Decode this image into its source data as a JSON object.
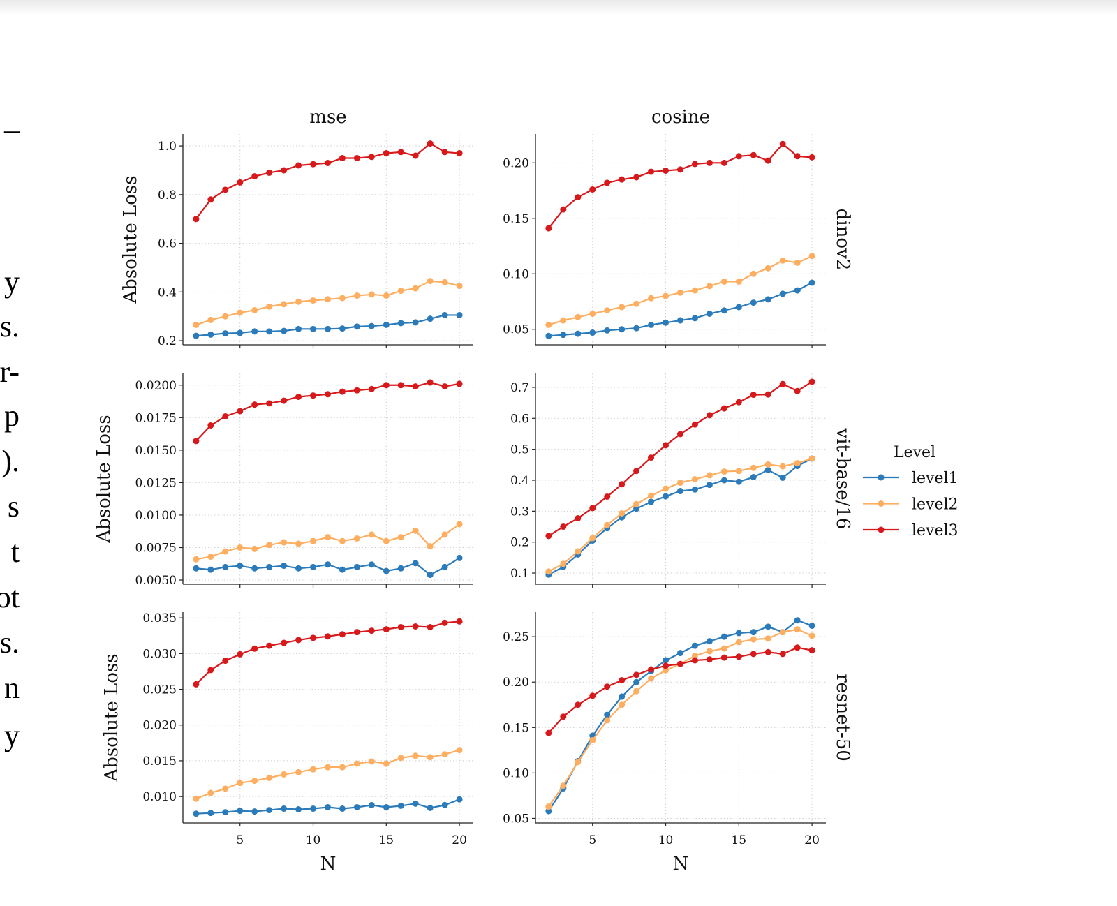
{
  "left_text_fragments": [
    "–",
    "y",
    "s.",
    "r-",
    "p",
    ").",
    "s",
    "t",
    "ot",
    "s.",
    "n",
    "y"
  ],
  "colors": {
    "level1": "#2b7bba",
    "level2": "#fdae61",
    "level3": "#d7191c"
  },
  "legend": {
    "title": "Level",
    "entries": [
      "level1",
      "level2",
      "level3"
    ],
    "placement": "right"
  },
  "chart_data": {
    "type": "line",
    "grid": true,
    "grid_style": "dotted",
    "columns": [
      "mse",
      "cosine"
    ],
    "rows": [
      "dinov2",
      "vit-base/16",
      "resnet-50"
    ],
    "xlabel": "N",
    "ylabel": "Absolute Loss",
    "x": [
      2,
      3,
      4,
      5,
      6,
      7,
      8,
      9,
      10,
      11,
      12,
      13,
      14,
      15,
      16,
      17,
      18,
      19,
      20
    ],
    "xlim": [
      1.1,
      20.95
    ],
    "xticks": [
      5,
      10,
      15,
      20
    ],
    "panels": [
      {
        "row": "dinov2",
        "col": "mse",
        "ylim": [
          0.183,
          1.049
        ],
        "yticks": [
          0.2,
          0.4,
          0.6,
          0.8,
          1.0
        ],
        "ytick_labels": [
          "0.2",
          "0.4",
          "0.6",
          "0.8",
          "1.0"
        ],
        "series": [
          {
            "name": "level1",
            "values": [
              0.22,
              0.225,
              0.23,
              0.232,
              0.238,
              0.238,
              0.24,
              0.248,
              0.248,
              0.248,
              0.25,
              0.258,
              0.26,
              0.265,
              0.272,
              0.275,
              0.29,
              0.305,
              0.305
            ]
          },
          {
            "name": "level2",
            "values": [
              0.265,
              0.285,
              0.3,
              0.315,
              0.325,
              0.34,
              0.35,
              0.36,
              0.365,
              0.37,
              0.375,
              0.385,
              0.39,
              0.385,
              0.405,
              0.415,
              0.445,
              0.44,
              0.425
            ]
          },
          {
            "name": "level3",
            "values": [
              0.7,
              0.78,
              0.82,
              0.85,
              0.875,
              0.89,
              0.9,
              0.92,
              0.925,
              0.93,
              0.95,
              0.95,
              0.955,
              0.97,
              0.975,
              0.96,
              1.01,
              0.975,
              0.97
            ]
          }
        ]
      },
      {
        "row": "dinov2",
        "col": "cosine",
        "ylim": [
          0.036,
          0.226
        ],
        "yticks": [
          0.05,
          0.1,
          0.15,
          0.2
        ],
        "ytick_labels": [
          "0.05",
          "0.10",
          "0.15",
          "0.20"
        ],
        "series": [
          {
            "name": "level1",
            "values": [
              0.044,
              0.045,
              0.046,
              0.047,
              0.049,
              0.05,
              0.051,
              0.054,
              0.056,
              0.058,
              0.06,
              0.064,
              0.067,
              0.07,
              0.074,
              0.077,
              0.082,
              0.085,
              0.092
            ]
          },
          {
            "name": "level2",
            "values": [
              0.054,
              0.058,
              0.061,
              0.064,
              0.067,
              0.07,
              0.073,
              0.078,
              0.08,
              0.083,
              0.085,
              0.089,
              0.093,
              0.093,
              0.1,
              0.105,
              0.112,
              0.11,
              0.116
            ]
          },
          {
            "name": "level3",
            "values": [
              0.141,
              0.158,
              0.169,
              0.176,
              0.182,
              0.185,
              0.187,
              0.192,
              0.193,
              0.194,
              0.199,
              0.2,
              0.2,
              0.206,
              0.207,
              0.202,
              0.217,
              0.206,
              0.205
            ]
          }
        ]
      },
      {
        "row": "vit-base/16",
        "col": "mse",
        "ylim": [
          0.00468,
          0.0209
        ],
        "yticks": [
          0.005,
          0.0075,
          0.01,
          0.0125,
          0.015,
          0.0175,
          0.02
        ],
        "ytick_labels": [
          "0.0050",
          "0.0075",
          "0.0100",
          "0.0125",
          "0.0150",
          "0.0175",
          "0.0200"
        ],
        "series": [
          {
            "name": "level1",
            "values": [
              0.0059,
              0.0058,
              0.006,
              0.0061,
              0.0059,
              0.006,
              0.0061,
              0.0059,
              0.006,
              0.0062,
              0.0058,
              0.006,
              0.0062,
              0.0057,
              0.0059,
              0.0063,
              0.0054,
              0.006,
              0.0067
            ]
          },
          {
            "name": "level2",
            "values": [
              0.0066,
              0.0068,
              0.0072,
              0.0075,
              0.0074,
              0.0077,
              0.0079,
              0.0078,
              0.008,
              0.0083,
              0.008,
              0.0082,
              0.0085,
              0.008,
              0.0083,
              0.0088,
              0.0076,
              0.0085,
              0.0093
            ]
          },
          {
            "name": "level3",
            "values": [
              0.0157,
              0.0169,
              0.0176,
              0.018,
              0.0185,
              0.0186,
              0.0188,
              0.0191,
              0.0192,
              0.0193,
              0.0195,
              0.0196,
              0.0197,
              0.02,
              0.02,
              0.0199,
              0.0202,
              0.0199,
              0.0201
            ]
          }
        ]
      },
      {
        "row": "vit-base/16",
        "col": "cosine",
        "ylim": [
          0.064,
          0.745
        ],
        "yticks": [
          0.1,
          0.2,
          0.3,
          0.4,
          0.5,
          0.6,
          0.7
        ],
        "ytick_labels": [
          "0.1",
          "0.2",
          "0.3",
          "0.4",
          "0.5",
          "0.6",
          "0.7"
        ],
        "series": [
          {
            "name": "level1",
            "values": [
              0.095,
              0.12,
              0.16,
              0.205,
              0.245,
              0.28,
              0.308,
              0.33,
              0.348,
              0.365,
              0.37,
              0.385,
              0.4,
              0.395,
              0.41,
              0.433,
              0.408,
              0.446,
              0.47
            ]
          },
          {
            "name": "level2",
            "values": [
              0.105,
              0.13,
              0.17,
              0.213,
              0.255,
              0.293,
              0.323,
              0.35,
              0.373,
              0.392,
              0.403,
              0.416,
              0.428,
              0.43,
              0.44,
              0.451,
              0.445,
              0.455,
              0.47
            ]
          },
          {
            "name": "level3",
            "values": [
              0.22,
              0.25,
              0.277,
              0.31,
              0.347,
              0.387,
              0.43,
              0.473,
              0.513,
              0.549,
              0.58,
              0.61,
              0.632,
              0.652,
              0.676,
              0.677,
              0.711,
              0.688,
              0.718
            ]
          }
        ]
      },
      {
        "row": "resnet-50",
        "col": "mse",
        "ylim": [
          0.0063,
          0.0358
        ],
        "yticks": [
          0.01,
          0.015,
          0.02,
          0.025,
          0.03,
          0.035
        ],
        "ytick_labels": [
          "0.010",
          "0.015",
          "0.020",
          "0.025",
          "0.030",
          "0.035"
        ],
        "series": [
          {
            "name": "level1",
            "values": [
              0.0076,
              0.0077,
              0.0078,
              0.008,
              0.0079,
              0.0081,
              0.0083,
              0.0082,
              0.0083,
              0.0085,
              0.0083,
              0.0085,
              0.0088,
              0.0085,
              0.0087,
              0.009,
              0.0084,
              0.0088,
              0.0096
            ]
          },
          {
            "name": "level2",
            "values": [
              0.0097,
              0.0105,
              0.0111,
              0.0119,
              0.0122,
              0.0126,
              0.0131,
              0.0134,
              0.0138,
              0.0141,
              0.0141,
              0.0146,
              0.0149,
              0.0146,
              0.0154,
              0.0157,
              0.0155,
              0.0159,
              0.0165
            ]
          },
          {
            "name": "level3",
            "values": [
              0.0257,
              0.0277,
              0.029,
              0.0299,
              0.0307,
              0.0311,
              0.0315,
              0.0319,
              0.0322,
              0.0324,
              0.0327,
              0.033,
              0.0332,
              0.0334,
              0.0337,
              0.0338,
              0.0337,
              0.0343,
              0.0345
            ]
          }
        ]
      },
      {
        "row": "resnet-50",
        "col": "cosine",
        "ylim": [
          0.045,
          0.277
        ],
        "yticks": [
          0.05,
          0.1,
          0.15,
          0.2,
          0.25
        ],
        "ytick_labels": [
          "0.05",
          "0.10",
          "0.15",
          "0.20",
          "0.25"
        ],
        "series": [
          {
            "name": "level1",
            "values": [
              0.058,
              0.083,
              0.113,
              0.141,
              0.164,
              0.184,
              0.2,
              0.212,
              0.224,
              0.232,
              0.24,
              0.245,
              0.25,
              0.254,
              0.255,
              0.261,
              0.255,
              0.268,
              0.262
            ]
          },
          {
            "name": "level2",
            "values": [
              0.063,
              0.086,
              0.112,
              0.136,
              0.158,
              0.175,
              0.19,
              0.204,
              0.213,
              0.22,
              0.229,
              0.234,
              0.237,
              0.244,
              0.247,
              0.248,
              0.255,
              0.258,
              0.251
            ]
          },
          {
            "name": "level3",
            "values": [
              0.144,
              0.162,
              0.175,
              0.185,
              0.195,
              0.202,
              0.208,
              0.214,
              0.218,
              0.22,
              0.224,
              0.225,
              0.227,
              0.228,
              0.231,
              0.233,
              0.231,
              0.238,
              0.235
            ]
          }
        ]
      }
    ]
  }
}
